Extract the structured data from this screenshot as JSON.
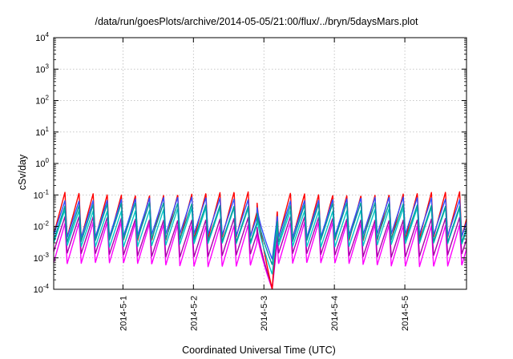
{
  "chart_data": {
    "type": "line",
    "title": "/data/run/goesPlots/archive/2014-05-05/21:00/flux/../bryn/5daysMars.plot",
    "xlabel": "Coordinated Universal Time (UTC)",
    "ylabel": "cSv/day",
    "y_scale": "log",
    "ylim": [
      0.0001,
      10000
    ],
    "y_tick_labels": [
      {
        "base": "10",
        "exp": "-4"
      },
      {
        "base": "10",
        "exp": "-3"
      },
      {
        "base": "10",
        "exp": "-2"
      },
      {
        "base": "10",
        "exp": "-1"
      },
      {
        "base": "10",
        "exp": "0"
      },
      {
        "base": "10",
        "exp": "1"
      },
      {
        "base": "10",
        "exp": "2"
      },
      {
        "base": "10",
        "exp": "3"
      },
      {
        "base": "10",
        "exp": "4"
      }
    ],
    "xlim": [
      "2014-04-30 00:25",
      "2014-05-05 21:00"
    ],
    "x_tick_labels": [
      "2014-5-1",
      "2014-5-2",
      "2014-5-3",
      "2014-5-4",
      "2014-5-5"
    ],
    "grid": true,
    "legend": "none",
    "pattern": {
      "description": "sawtooth oscillation, roughly 5 cycles per day",
      "cycles_per_day": 5,
      "dropout_start": "2014-05-02 21:40",
      "dropout_min_time": "2014-05-03 02:50",
      "recovery_time": "2014-05-03 04:30"
    },
    "series": [
      {
        "color": "#ff00ff",
        "peak": 0.012,
        "trough": 0.0006,
        "dropout_min": 0.0001
      },
      {
        "color": "#a800a8",
        "peak": 0.018,
        "trough": 0.0012,
        "dropout_min": 0.00011
      },
      {
        "color": "#ff0000",
        "peak": 0.11,
        "trough": 0.004,
        "dropout_min": 0.0001
      },
      {
        "color": "#00c8c8",
        "peak": 0.035,
        "trough": 0.0025,
        "dropout_min": 0.0003
      },
      {
        "color": "#3050ff",
        "peak": 0.075,
        "trough": 0.005,
        "dropout_min": 0.0009
      },
      {
        "color": "#009a9a",
        "peak": 0.05,
        "trough": 0.0035,
        "dropout_min": 0.0006
      }
    ]
  }
}
